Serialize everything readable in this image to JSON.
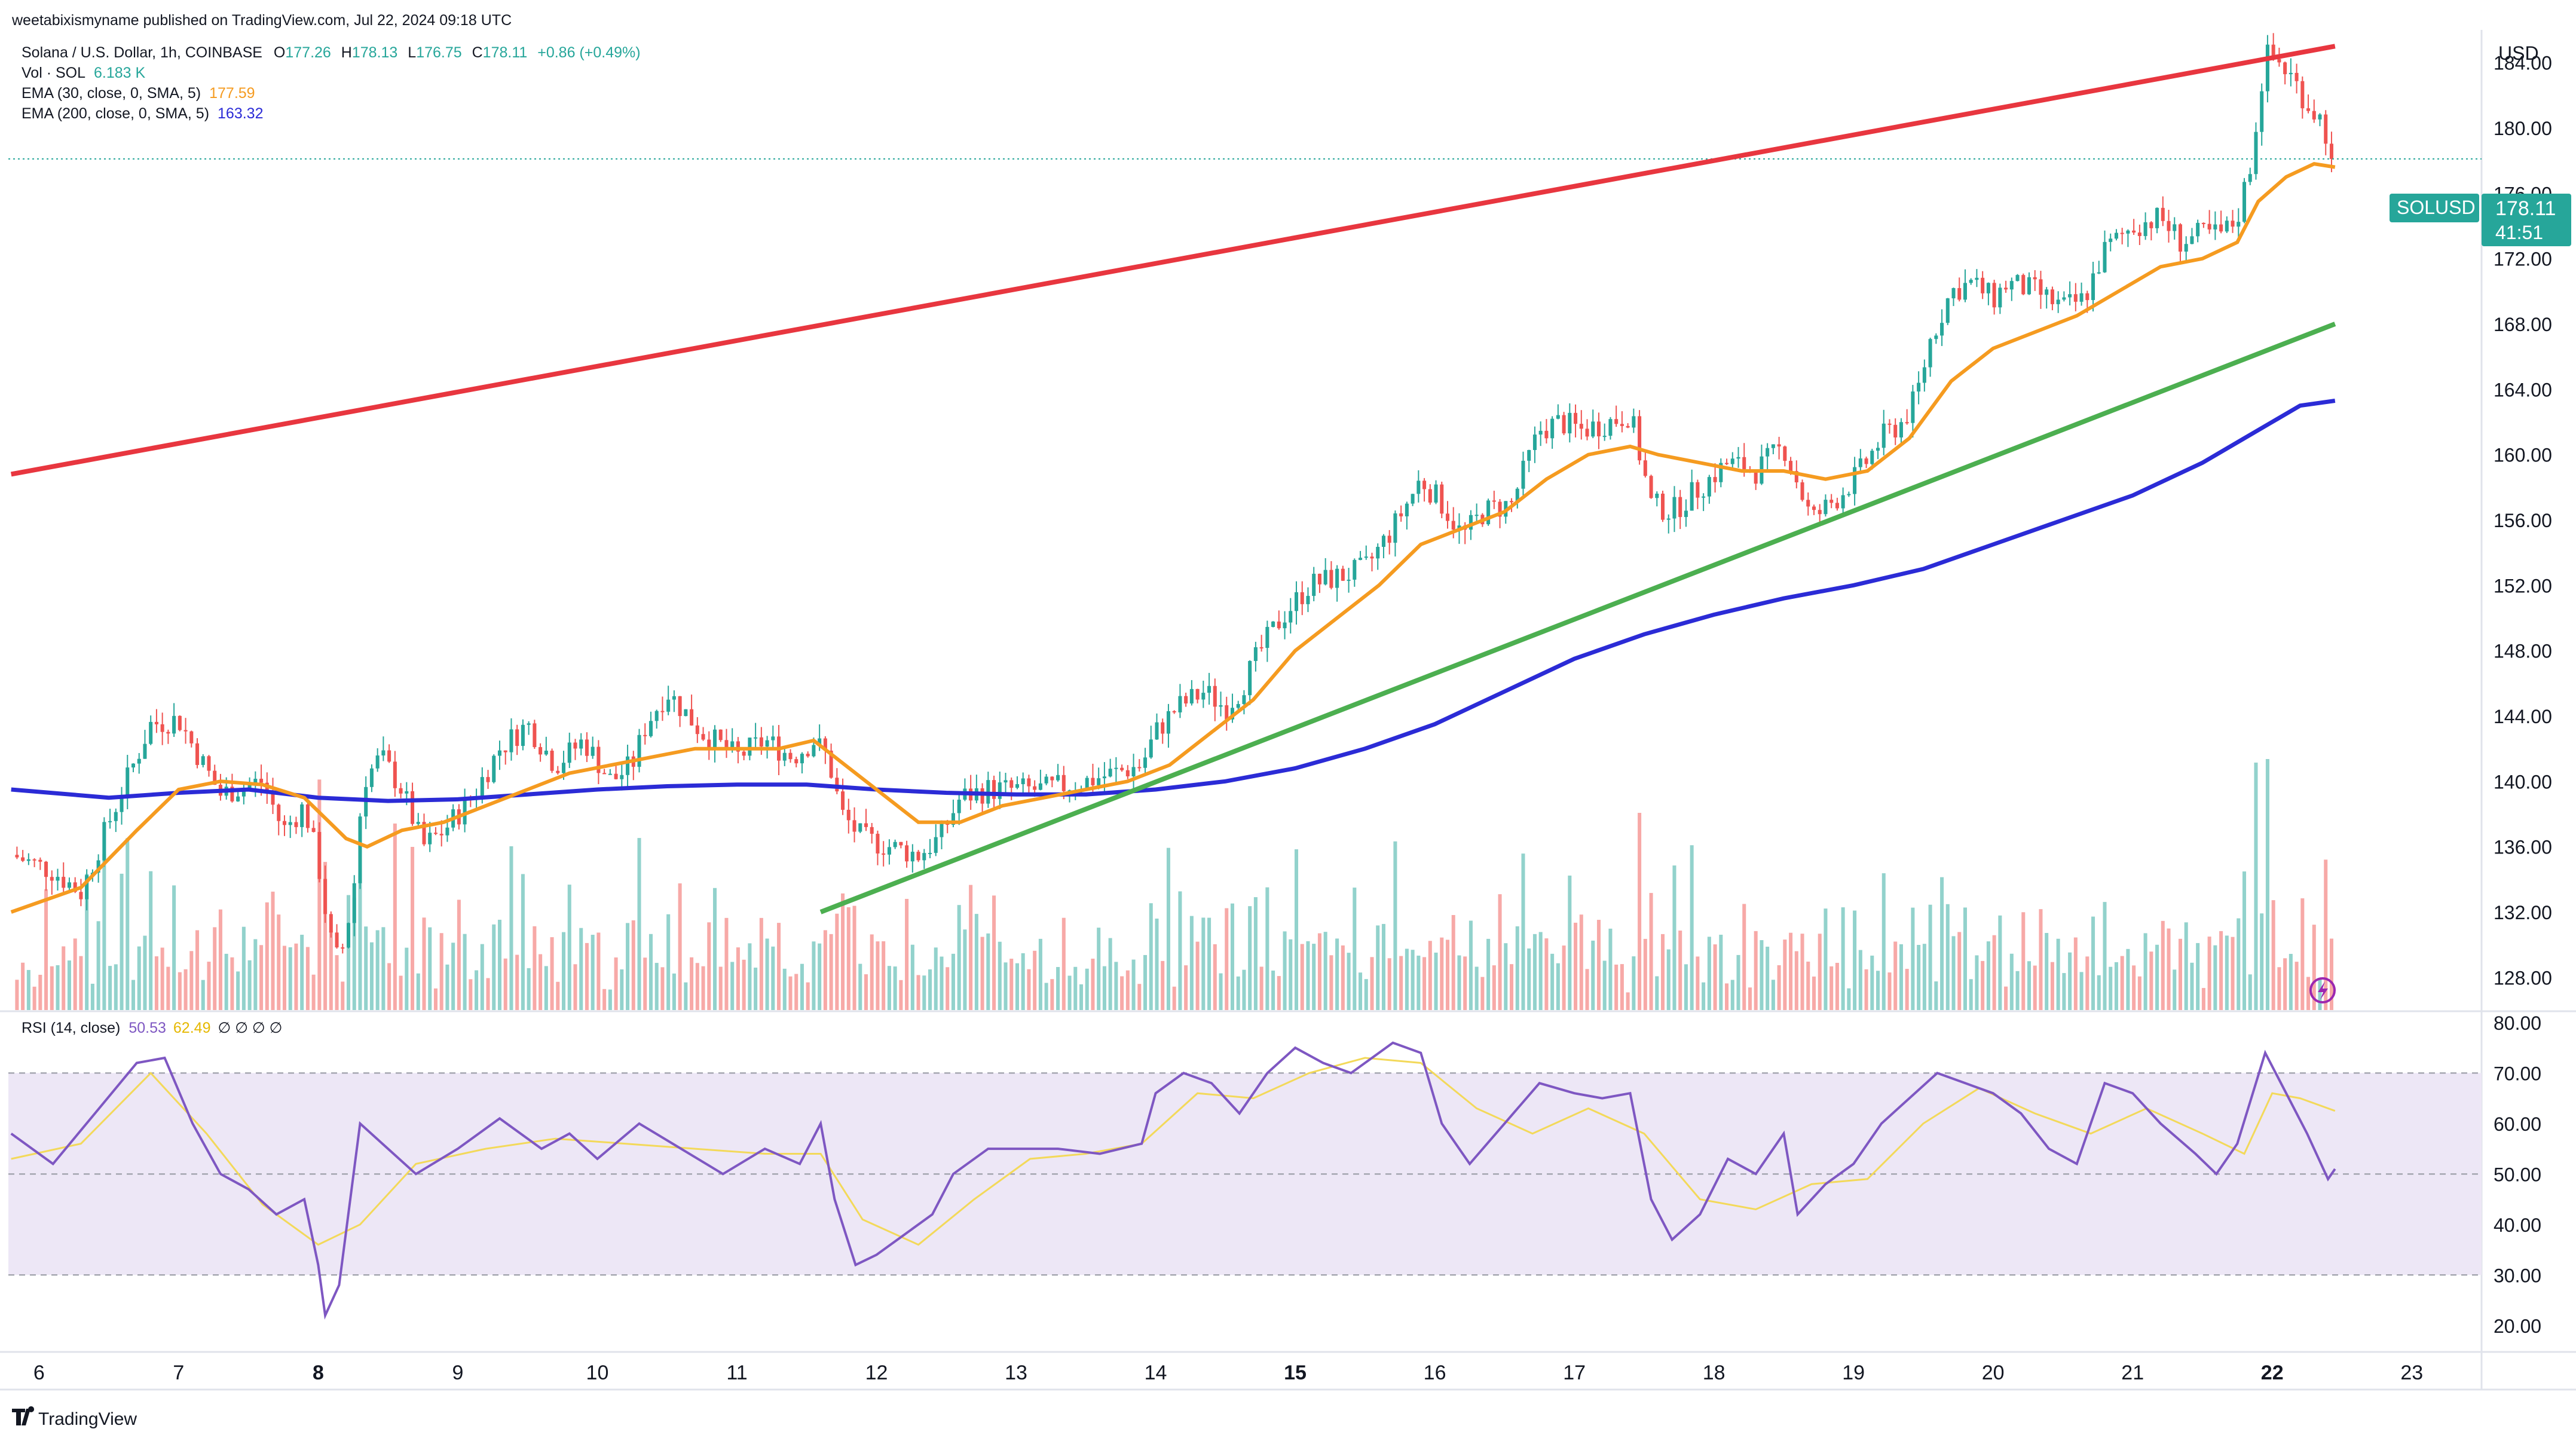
{
  "header": {
    "published": "weetabixismyname published on TradingView.com, Jul 22, 2024 09:18 UTC",
    "symbol_line": "Solana / U.S. Dollar, 1h, COINBASE",
    "ohlc": {
      "o_label": "O",
      "o": "177.26",
      "h_label": "H",
      "h": "178.13",
      "l_label": "L",
      "l": "176.75",
      "c_label": "C",
      "c": "178.11",
      "change": "+0.86 (+0.49%)"
    },
    "vol_label": "Vol · SOL",
    "vol_value": "6.183 K",
    "ema30_label": "EMA (30, close, 0, SMA, 5)",
    "ema30_value": "177.59",
    "ema200_label": "EMA (200, close, 0, SMA, 5)",
    "ema200_value": "163.32",
    "rsi_label": "RSI (14, close)",
    "rsi_value": "50.53",
    "rsi_ma_value": "62.49",
    "rsi_extra": "∅ ∅ ∅ ∅"
  },
  "price_axis": {
    "currency": "USD",
    "ticks": [
      "184.00",
      "180.00",
      "176.00",
      "172.00",
      "168.00",
      "164.00",
      "160.00",
      "156.00",
      "152.00",
      "148.00",
      "144.00",
      "140.00",
      "136.00",
      "132.00",
      "128.00"
    ],
    "tag_symbol": "SOLUSD",
    "tag_price": "178.11",
    "tag_countdown": "41:51"
  },
  "rsi_axis": {
    "ticks": [
      "80.00",
      "70.00",
      "60.00",
      "50.00",
      "40.00",
      "30.00",
      "20.00"
    ]
  },
  "time_axis": {
    "labels": [
      "6",
      "7",
      "8",
      "9",
      "10",
      "11",
      "12",
      "13",
      "14",
      "15",
      "16",
      "17",
      "18",
      "19",
      "20",
      "21",
      "22",
      "23"
    ],
    "bold": [
      "8",
      "15",
      "22"
    ]
  },
  "footer": {
    "brand": "TradingView"
  },
  "colors": {
    "up": "#26a69a",
    "down": "#ef5350",
    "ema30": "#f59b20",
    "ema200": "#2b2bd6",
    "resistance": "#e8363f",
    "support": "#4caf50",
    "rsi": "#7e57c2",
    "rsi_ma": "#f3d95a",
    "rsi_band": "#ede7f6",
    "tag": "#26a69a"
  },
  "chart_data": {
    "type": "candlestick",
    "instrument": "Solana / U.S. Dollar",
    "timeframe": "1h",
    "y_range": [
      126,
      186
    ],
    "rsi_range": [
      15,
      82
    ],
    "x_range_days": [
      5.78,
      23.5
    ],
    "close_path": [
      [
        5.8,
        135.5
      ],
      [
        6.1,
        134.5
      ],
      [
        6.3,
        133.2
      ],
      [
        6.5,
        137.5
      ],
      [
        6.7,
        141.5
      ],
      [
        6.8,
        143.5
      ],
      [
        7.0,
        143.8
      ],
      [
        7.1,
        142.2
      ],
      [
        7.3,
        139.2
      ],
      [
        7.5,
        139.8
      ],
      [
        7.6,
        140.0
      ],
      [
        7.75,
        137.0
      ],
      [
        7.9,
        138.5
      ],
      [
        8.0,
        135.0
      ],
      [
        8.08,
        130.5
      ],
      [
        8.15,
        128.8
      ],
      [
        8.25,
        133.0
      ],
      [
        8.32,
        140.0
      ],
      [
        8.45,
        141.5
      ],
      [
        8.6,
        139.5
      ],
      [
        8.75,
        136.0
      ],
      [
        8.9,
        137.0
      ],
      [
        9.1,
        139.0
      ],
      [
        9.3,
        142.0
      ],
      [
        9.5,
        143.5
      ],
      [
        9.7,
        141.0
      ],
      [
        9.9,
        142.5
      ],
      [
        10.1,
        140.0
      ],
      [
        10.25,
        141.0
      ],
      [
        10.35,
        143.5
      ],
      [
        10.5,
        145.5
      ],
      [
        10.75,
        143.0
      ],
      [
        11.0,
        141.5
      ],
      [
        11.2,
        142.5
      ],
      [
        11.4,
        141.5
      ],
      [
        11.55,
        142.5
      ],
      [
        11.65,
        141.5
      ],
      [
        11.75,
        138.0
      ],
      [
        11.9,
        136.5
      ],
      [
        12.1,
        136.0
      ],
      [
        12.3,
        135.5
      ],
      [
        12.45,
        136.5
      ],
      [
        12.6,
        139.0
      ],
      [
        12.8,
        139.5
      ],
      [
        13.0,
        139.5
      ],
      [
        13.2,
        139.5
      ],
      [
        13.5,
        140.0
      ],
      [
        13.7,
        140.5
      ],
      [
        13.9,
        141.0
      ],
      [
        14.0,
        143.0
      ],
      [
        14.15,
        144.5
      ],
      [
        14.35,
        145.5
      ],
      [
        14.5,
        144.5
      ],
      [
        14.6,
        145.5
      ],
      [
        14.75,
        148.0
      ],
      [
        14.9,
        150.0
      ],
      [
        15.1,
        152.0
      ],
      [
        15.3,
        152.5
      ],
      [
        15.5,
        153.0
      ],
      [
        15.7,
        155.5
      ],
      [
        15.9,
        158.5
      ],
      [
        16.05,
        157.0
      ],
      [
        16.2,
        155.0
      ],
      [
        16.35,
        156.5
      ],
      [
        16.55,
        157.0
      ],
      [
        16.75,
        161.5
      ],
      [
        16.9,
        162.0
      ],
      [
        17.05,
        161.5
      ],
      [
        17.25,
        162.0
      ],
      [
        17.4,
        162.5
      ],
      [
        17.55,
        157.0
      ],
      [
        17.7,
        156.5
      ],
      [
        17.9,
        158.0
      ],
      [
        18.1,
        159.5
      ],
      [
        18.3,
        159.0
      ],
      [
        18.5,
        160.5
      ],
      [
        18.7,
        156.0
      ],
      [
        18.9,
        157.5
      ],
      [
        19.05,
        159.0
      ],
      [
        19.2,
        161.0
      ],
      [
        19.35,
        162.0
      ],
      [
        19.45,
        163.5
      ],
      [
        19.55,
        167.0
      ],
      [
        19.7,
        170.0
      ],
      [
        19.85,
        170.5
      ],
      [
        20.0,
        169.5
      ],
      [
        20.1,
        170.5
      ],
      [
        20.3,
        170.0
      ],
      [
        20.5,
        169.0
      ],
      [
        20.65,
        169.5
      ],
      [
        20.8,
        172.5
      ],
      [
        21.0,
        174.0
      ],
      [
        21.2,
        174.5
      ],
      [
        21.35,
        173.0
      ],
      [
        21.5,
        173.5
      ],
      [
        21.65,
        173.5
      ],
      [
        21.75,
        174.5
      ],
      [
        21.85,
        178.0
      ],
      [
        21.95,
        184.5
      ],
      [
        22.05,
        184.0
      ],
      [
        22.15,
        183.0
      ],
      [
        22.25,
        181.5
      ],
      [
        22.35,
        180.5
      ],
      [
        22.45,
        178.1
      ]
    ],
    "ema30": [
      [
        5.8,
        132.0
      ],
      [
        6.3,
        133.5
      ],
      [
        6.7,
        137.0
      ],
      [
        7.0,
        139.5
      ],
      [
        7.3,
        140.0
      ],
      [
        7.6,
        139.8
      ],
      [
        7.9,
        139.0
      ],
      [
        8.2,
        136.5
      ],
      [
        8.35,
        136.0
      ],
      [
        8.6,
        137.0
      ],
      [
        8.9,
        137.5
      ],
      [
        9.2,
        138.5
      ],
      [
        9.5,
        139.5
      ],
      [
        9.8,
        140.5
      ],
      [
        10.1,
        141.0
      ],
      [
        10.4,
        141.5
      ],
      [
        10.7,
        142.0
      ],
      [
        11.0,
        142.0
      ],
      [
        11.3,
        142.0
      ],
      [
        11.55,
        142.5
      ],
      [
        11.7,
        141.5
      ],
      [
        12.0,
        139.5
      ],
      [
        12.3,
        137.5
      ],
      [
        12.6,
        137.5
      ],
      [
        12.9,
        138.5
      ],
      [
        13.2,
        139.0
      ],
      [
        13.5,
        139.5
      ],
      [
        13.8,
        140.0
      ],
      [
        14.1,
        141.0
      ],
      [
        14.4,
        143.0
      ],
      [
        14.7,
        145.0
      ],
      [
        15.0,
        148.0
      ],
      [
        15.3,
        150.0
      ],
      [
        15.6,
        152.0
      ],
      [
        15.9,
        154.5
      ],
      [
        16.2,
        155.5
      ],
      [
        16.5,
        156.5
      ],
      [
        16.8,
        158.5
      ],
      [
        17.1,
        160.0
      ],
      [
        17.4,
        160.5
      ],
      [
        17.6,
        160.0
      ],
      [
        17.9,
        159.5
      ],
      [
        18.2,
        159.0
      ],
      [
        18.5,
        159.0
      ],
      [
        18.8,
        158.5
      ],
      [
        19.1,
        159.0
      ],
      [
        19.4,
        161.0
      ],
      [
        19.7,
        164.5
      ],
      [
        20.0,
        166.5
      ],
      [
        20.3,
        167.5
      ],
      [
        20.6,
        168.5
      ],
      [
        20.9,
        170.0
      ],
      [
        21.2,
        171.5
      ],
      [
        21.5,
        172.0
      ],
      [
        21.75,
        173.0
      ],
      [
        21.9,
        175.5
      ],
      [
        22.1,
        177.0
      ],
      [
        22.3,
        177.8
      ],
      [
        22.45,
        177.6
      ]
    ],
    "ema200": [
      [
        5.8,
        139.5
      ],
      [
        6.5,
        139.0
      ],
      [
        7.0,
        139.3
      ],
      [
        7.5,
        139.5
      ],
      [
        8.0,
        139.0
      ],
      [
        8.5,
        138.8
      ],
      [
        9.0,
        138.9
      ],
      [
        9.5,
        139.2
      ],
      [
        10.0,
        139.5
      ],
      [
        10.5,
        139.7
      ],
      [
        11.0,
        139.8
      ],
      [
        11.5,
        139.8
      ],
      [
        12.0,
        139.5
      ],
      [
        12.5,
        139.3
      ],
      [
        13.0,
        139.2
      ],
      [
        13.5,
        139.2
      ],
      [
        14.0,
        139.5
      ],
      [
        14.5,
        140.0
      ],
      [
        15.0,
        140.8
      ],
      [
        15.5,
        142.0
      ],
      [
        16.0,
        143.5
      ],
      [
        16.5,
        145.5
      ],
      [
        17.0,
        147.5
      ],
      [
        17.5,
        149.0
      ],
      [
        18.0,
        150.2
      ],
      [
        18.5,
        151.2
      ],
      [
        19.0,
        152.0
      ],
      [
        19.5,
        153.0
      ],
      [
        20.0,
        154.5
      ],
      [
        20.5,
        156.0
      ],
      [
        21.0,
        157.5
      ],
      [
        21.5,
        159.5
      ],
      [
        21.8,
        161.0
      ],
      [
        22.0,
        162.0
      ],
      [
        22.2,
        163.0
      ],
      [
        22.45,
        163.3
      ]
    ],
    "resistance_line": [
      [
        5.8,
        158.8
      ],
      [
        22.45,
        185.0
      ]
    ],
    "support_line": [
      [
        11.6,
        132.0
      ],
      [
        22.45,
        168.0
      ]
    ],
    "rsi": [
      [
        5.8,
        58
      ],
      [
        6.1,
        52
      ],
      [
        6.4,
        62
      ],
      [
        6.7,
        72
      ],
      [
        6.9,
        73
      ],
      [
        7.1,
        60
      ],
      [
        7.3,
        50
      ],
      [
        7.5,
        47
      ],
      [
        7.7,
        42
      ],
      [
        7.9,
        45
      ],
      [
        8.0,
        32
      ],
      [
        8.05,
        22
      ],
      [
        8.15,
        28
      ],
      [
        8.3,
        60
      ],
      [
        8.5,
        55
      ],
      [
        8.7,
        50
      ],
      [
        9.0,
        55
      ],
      [
        9.3,
        61
      ],
      [
        9.6,
        55
      ],
      [
        9.8,
        58
      ],
      [
        10.0,
        53
      ],
      [
        10.3,
        60
      ],
      [
        10.6,
        55
      ],
      [
        10.9,
        50
      ],
      [
        11.2,
        55
      ],
      [
        11.45,
        52
      ],
      [
        11.6,
        60
      ],
      [
        11.7,
        45
      ],
      [
        11.85,
        32
      ],
      [
        12.0,
        34
      ],
      [
        12.2,
        38
      ],
      [
        12.4,
        42
      ],
      [
        12.55,
        50
      ],
      [
        12.8,
        55
      ],
      [
        13.0,
        55
      ],
      [
        13.3,
        55
      ],
      [
        13.6,
        54
      ],
      [
        13.9,
        56
      ],
      [
        14.0,
        66
      ],
      [
        14.2,
        70
      ],
      [
        14.4,
        68
      ],
      [
        14.6,
        62
      ],
      [
        14.8,
        70
      ],
      [
        15.0,
        75
      ],
      [
        15.2,
        72
      ],
      [
        15.4,
        70
      ],
      [
        15.7,
        76
      ],
      [
        15.9,
        74
      ],
      [
        16.05,
        60
      ],
      [
        16.25,
        52
      ],
      [
        16.5,
        60
      ],
      [
        16.75,
        68
      ],
      [
        17.0,
        66
      ],
      [
        17.2,
        65
      ],
      [
        17.4,
        66
      ],
      [
        17.55,
        45
      ],
      [
        17.7,
        37
      ],
      [
        17.9,
        42
      ],
      [
        18.1,
        53
      ],
      [
        18.3,
        50
      ],
      [
        18.5,
        58
      ],
      [
        18.6,
        42
      ],
      [
        18.8,
        48
      ],
      [
        19.0,
        52
      ],
      [
        19.2,
        60
      ],
      [
        19.4,
        65
      ],
      [
        19.6,
        70
      ],
      [
        19.8,
        68
      ],
      [
        20.0,
        66
      ],
      [
        20.2,
        62
      ],
      [
        20.4,
        55
      ],
      [
        20.6,
        52
      ],
      [
        20.8,
        68
      ],
      [
        21.0,
        66
      ],
      [
        21.2,
        60
      ],
      [
        21.45,
        54
      ],
      [
        21.6,
        50
      ],
      [
        21.75,
        56
      ],
      [
        21.95,
        74
      ],
      [
        22.1,
        66
      ],
      [
        22.25,
        58
      ],
      [
        22.4,
        49
      ],
      [
        22.45,
        51
      ]
    ],
    "rsi_ma": [
      [
        5.8,
        53
      ],
      [
        6.3,
        56
      ],
      [
        6.8,
        70
      ],
      [
        7.2,
        58
      ],
      [
        7.6,
        44
      ],
      [
        8.0,
        36
      ],
      [
        8.3,
        40
      ],
      [
        8.7,
        52
      ],
      [
        9.2,
        55
      ],
      [
        9.7,
        57
      ],
      [
        10.2,
        56
      ],
      [
        10.7,
        55
      ],
      [
        11.2,
        54
      ],
      [
        11.6,
        54
      ],
      [
        11.9,
        41
      ],
      [
        12.3,
        36
      ],
      [
        12.7,
        45
      ],
      [
        13.1,
        53
      ],
      [
        13.5,
        54
      ],
      [
        13.9,
        56
      ],
      [
        14.3,
        66
      ],
      [
        14.7,
        65
      ],
      [
        15.1,
        70
      ],
      [
        15.5,
        73
      ],
      [
        15.9,
        72
      ],
      [
        16.3,
        63
      ],
      [
        16.7,
        58
      ],
      [
        17.1,
        63
      ],
      [
        17.5,
        58
      ],
      [
        17.9,
        45
      ],
      [
        18.3,
        43
      ],
      [
        18.7,
        48
      ],
      [
        19.1,
        49
      ],
      [
        19.5,
        60
      ],
      [
        19.9,
        67
      ],
      [
        20.3,
        62
      ],
      [
        20.7,
        58
      ],
      [
        21.1,
        63
      ],
      [
        21.5,
        58
      ],
      [
        21.8,
        54
      ],
      [
        22.0,
        66
      ],
      [
        22.2,
        65
      ],
      [
        22.45,
        62.5
      ]
    ],
    "rsi_levels": {
      "upper": 70,
      "mid": 50,
      "lower": 30
    }
  }
}
